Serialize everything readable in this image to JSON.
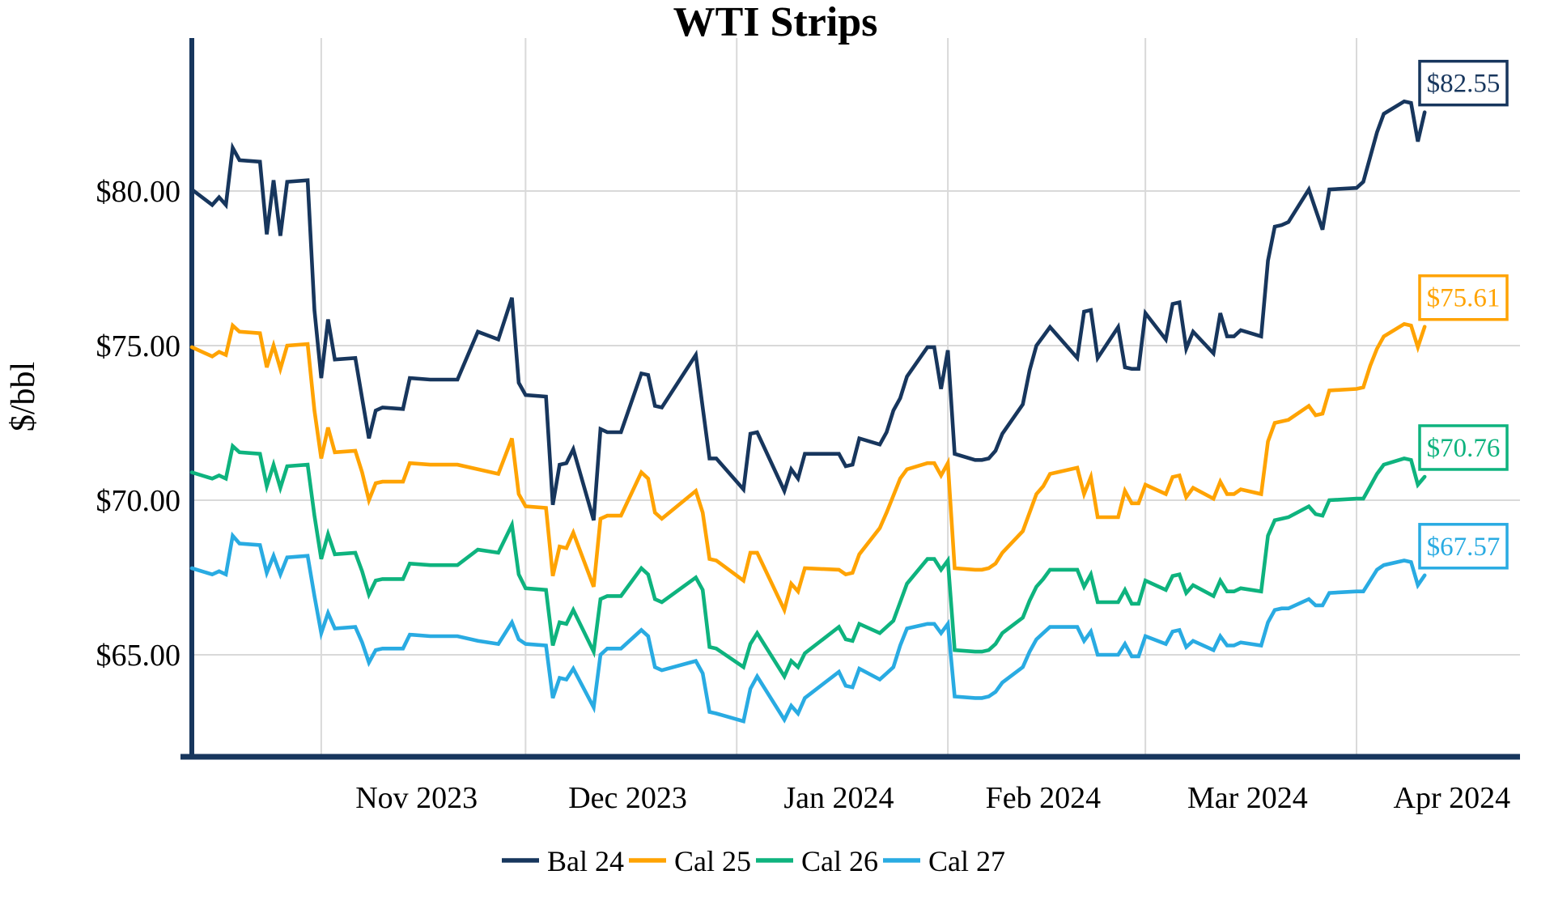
{
  "chart_data": {
    "type": "line",
    "title": "WTI Strips",
    "ylabel": "$/bbl",
    "ylim": [
      61.7,
      84.95
    ],
    "xlim": [
      "2023-10-13",
      "2024-04-25"
    ],
    "grid": true,
    "grid_color": "#D9D9D9",
    "axis_color": "#17365D",
    "legend_position": "bottom-center",
    "y_ticks": [
      {
        "value": 65,
        "label": "$65.00"
      },
      {
        "value": 70,
        "label": "$70.00"
      },
      {
        "value": 75,
        "label": "$75.00"
      },
      {
        "value": 80,
        "label": "$80.00"
      }
    ],
    "month_gridlines": [
      "2023-11-01",
      "2023-12-01",
      "2024-01-01",
      "2024-02-01",
      "2024-03-01",
      "2024-04-01"
    ],
    "x_ticks": [
      {
        "center": "2023-11-15",
        "label": "Nov 2023"
      },
      {
        "center": "2023-12-16",
        "label": "Dec 2023"
      },
      {
        "center": "2024-01-16",
        "label": "Jan 2024"
      },
      {
        "center": "2024-02-15",
        "label": "Feb 2024"
      },
      {
        "center": "2024-03-16",
        "label": "Mar 2024"
      },
      {
        "center": "2024-04-15",
        "label": "Apr 2024"
      }
    ],
    "dates": [
      "2023-10-13",
      "2023-10-16",
      "2023-10-17",
      "2023-10-18",
      "2023-10-19",
      "2023-10-20",
      "2023-10-23",
      "2023-10-24",
      "2023-10-25",
      "2023-10-26",
      "2023-10-27",
      "2023-10-30",
      "2023-10-31",
      "2023-11-01",
      "2023-11-02",
      "2023-11-03",
      "2023-11-06",
      "2023-11-07",
      "2023-11-08",
      "2023-11-09",
      "2023-11-10",
      "2023-11-13",
      "2023-11-14",
      "2023-11-17",
      "2023-11-21",
      "2023-11-24",
      "2023-11-27",
      "2023-11-29",
      "2023-11-30",
      "2023-12-01",
      "2023-12-04",
      "2023-12-05",
      "2023-12-06",
      "2023-12-07",
      "2023-12-08",
      "2023-12-11",
      "2023-12-12",
      "2023-12-13",
      "2023-12-14",
      "2023-12-15",
      "2023-12-18",
      "2023-12-19",
      "2023-12-20",
      "2023-12-21",
      "2023-12-26",
      "2023-12-27",
      "2023-12-28",
      "2023-12-29",
      "2024-01-02",
      "2024-01-03",
      "2024-01-04",
      "2024-01-08",
      "2024-01-09",
      "2024-01-10",
      "2024-01-11",
      "2024-01-16",
      "2024-01-17",
      "2024-01-18",
      "2024-01-19",
      "2024-01-22",
      "2024-01-23",
      "2024-01-24",
      "2024-01-25",
      "2024-01-26",
      "2024-01-29",
      "2024-01-30",
      "2024-01-31",
      "2024-02-01",
      "2024-02-02",
      "2024-02-05",
      "2024-02-06",
      "2024-02-07",
      "2024-02-08",
      "2024-02-09",
      "2024-02-12",
      "2024-02-13",
      "2024-02-14",
      "2024-02-15",
      "2024-02-16",
      "2024-02-20",
      "2024-02-21",
      "2024-02-22",
      "2024-02-23",
      "2024-02-26",
      "2024-02-27",
      "2024-02-28",
      "2024-02-29",
      "2024-03-01",
      "2024-03-04",
      "2024-03-05",
      "2024-03-06",
      "2024-03-07",
      "2024-03-08",
      "2024-03-11",
      "2024-03-12",
      "2024-03-13",
      "2024-03-14",
      "2024-03-15",
      "2024-03-18",
      "2024-03-19",
      "2024-03-20",
      "2024-03-21",
      "2024-03-22",
      "2024-03-25",
      "2024-03-26",
      "2024-03-27",
      "2024-03-28",
      "2024-04-01",
      "2024-04-02",
      "2024-04-03",
      "2024-04-04",
      "2024-04-05",
      "2024-04-08",
      "2024-04-09",
      "2024-04-10",
      "2024-04-11"
    ],
    "series": [
      {
        "name": "Bal 24",
        "color": "#17365D",
        "end_label": "$82.55",
        "end_value": 82.55,
        "values": [
          80.05,
          79.55,
          79.8,
          79.55,
          81.4,
          81.0,
          80.95,
          78.6,
          80.35,
          78.55,
          80.3,
          80.35,
          76.15,
          73.95,
          75.85,
          74.55,
          74.6,
          73.3,
          72.0,
          72.9,
          73.0,
          72.95,
          73.95,
          73.9,
          73.9,
          75.45,
          75.2,
          76.55,
          73.8,
          73.4,
          73.35,
          69.85,
          71.15,
          71.2,
          71.65,
          69.35,
          72.3,
          72.2,
          72.2,
          72.2,
          74.1,
          74.05,
          73.05,
          73.0,
          74.7,
          73.0,
          71.35,
          71.35,
          70.35,
          72.15,
          72.2,
          70.3,
          71.0,
          70.7,
          71.5,
          71.5,
          71.1,
          71.15,
          72.0,
          71.8,
          72.2,
          72.9,
          73.3,
          74.0,
          74.95,
          74.95,
          73.6,
          74.85,
          71.5,
          71.3,
          71.3,
          71.35,
          71.6,
          72.15,
          73.1,
          74.2,
          75.0,
          75.3,
          75.6,
          74.6,
          76.1,
          76.15,
          74.6,
          75.6,
          74.3,
          74.25,
          74.25,
          76.05,
          75.2,
          76.35,
          76.4,
          74.9,
          75.45,
          74.75,
          76.05,
          75.3,
          75.3,
          75.5,
          75.3,
          77.75,
          78.85,
          78.9,
          79.0,
          80.05,
          79.4,
          78.75,
          80.05,
          80.1,
          80.3,
          81.1,
          81.9,
          82.5,
          82.9,
          82.85,
          81.6,
          82.55
        ]
      },
      {
        "name": "Cal 25",
        "color": "#FFA302",
        "end_label": "$75.61",
        "end_value": 75.61,
        "values": [
          74.95,
          74.65,
          74.8,
          74.7,
          75.65,
          75.45,
          75.4,
          74.3,
          75.0,
          74.25,
          75.0,
          75.05,
          72.9,
          71.35,
          72.35,
          71.55,
          71.6,
          70.9,
          70.0,
          70.55,
          70.6,
          70.6,
          71.2,
          71.15,
          71.15,
          71.0,
          70.85,
          72.0,
          70.2,
          69.8,
          69.75,
          67.55,
          68.5,
          68.45,
          68.95,
          67.2,
          69.4,
          69.5,
          69.5,
          69.5,
          70.9,
          70.7,
          69.6,
          69.4,
          70.3,
          69.6,
          68.1,
          68.05,
          67.4,
          68.3,
          68.3,
          66.45,
          67.3,
          67.05,
          67.8,
          67.75,
          67.6,
          67.65,
          68.25,
          69.1,
          69.6,
          70.15,
          70.7,
          71.0,
          71.2,
          71.2,
          70.8,
          71.2,
          67.8,
          67.75,
          67.75,
          67.8,
          67.95,
          68.3,
          69.0,
          69.6,
          70.2,
          70.45,
          70.85,
          71.05,
          70.2,
          70.75,
          69.45,
          69.45,
          70.3,
          69.9,
          69.9,
          70.5,
          70.2,
          70.75,
          70.8,
          70.1,
          70.4,
          70.05,
          70.6,
          70.2,
          70.2,
          70.35,
          70.2,
          71.9,
          72.5,
          72.55,
          72.6,
          73.05,
          72.75,
          72.8,
          73.55,
          73.6,
          73.65,
          74.35,
          74.9,
          75.3,
          75.7,
          75.65,
          74.95,
          75.61
        ]
      },
      {
        "name": "Cal 26",
        "color": "#0EB37E",
        "end_label": "$70.76",
        "end_value": 70.76,
        "values": [
          70.9,
          70.7,
          70.8,
          70.7,
          71.75,
          71.55,
          71.5,
          70.45,
          71.15,
          70.4,
          71.1,
          71.15,
          69.5,
          68.1,
          68.9,
          68.25,
          68.3,
          67.7,
          66.95,
          67.4,
          67.45,
          67.45,
          67.95,
          67.9,
          67.9,
          68.4,
          68.3,
          69.2,
          67.6,
          67.15,
          67.1,
          65.3,
          66.05,
          66.0,
          66.45,
          65.1,
          66.8,
          66.9,
          66.9,
          66.9,
          67.8,
          67.6,
          66.8,
          66.7,
          67.5,
          67.1,
          65.25,
          65.2,
          64.6,
          65.35,
          65.7,
          64.3,
          64.8,
          64.6,
          65.05,
          65.9,
          65.5,
          65.45,
          66.0,
          65.7,
          65.9,
          66.1,
          66.7,
          67.3,
          68.1,
          68.1,
          67.75,
          68.05,
          65.15,
          65.1,
          65.1,
          65.15,
          65.35,
          65.7,
          66.2,
          66.75,
          67.2,
          67.45,
          67.75,
          67.75,
          67.2,
          67.6,
          66.7,
          66.7,
          67.1,
          66.65,
          66.65,
          67.4,
          67.1,
          67.55,
          67.6,
          67.0,
          67.25,
          66.9,
          67.4,
          67.05,
          67.05,
          67.15,
          67.05,
          68.85,
          69.35,
          69.4,
          69.45,
          69.8,
          69.55,
          69.5,
          70.0,
          70.05,
          70.05,
          70.45,
          70.85,
          71.15,
          71.35,
          71.3,
          70.5,
          70.76
        ]
      },
      {
        "name": "Cal 27",
        "color": "#29ABE2",
        "end_label": "$67.57",
        "end_value": 67.57,
        "values": [
          67.8,
          67.6,
          67.7,
          67.6,
          68.85,
          68.6,
          68.55,
          67.65,
          68.2,
          67.6,
          68.15,
          68.2,
          66.9,
          65.7,
          66.35,
          65.85,
          65.9,
          65.4,
          64.75,
          65.15,
          65.2,
          65.2,
          65.65,
          65.6,
          65.6,
          65.45,
          65.35,
          66.05,
          65.5,
          65.35,
          65.3,
          63.6,
          64.25,
          64.2,
          64.55,
          63.3,
          65.0,
          65.2,
          65.2,
          65.2,
          65.8,
          65.6,
          64.6,
          64.5,
          64.8,
          64.4,
          63.15,
          63.1,
          62.85,
          63.9,
          64.3,
          62.9,
          63.35,
          63.1,
          63.6,
          64.45,
          64.0,
          63.95,
          64.55,
          64.2,
          64.4,
          64.6,
          65.3,
          65.85,
          66.0,
          66.0,
          65.7,
          66.0,
          63.65,
          63.6,
          63.6,
          63.65,
          63.8,
          64.1,
          64.6,
          65.1,
          65.5,
          65.7,
          65.9,
          65.9,
          65.45,
          65.75,
          65.0,
          65.0,
          65.35,
          64.95,
          64.95,
          65.6,
          65.35,
          65.75,
          65.8,
          65.25,
          65.45,
          65.15,
          65.6,
          65.3,
          65.3,
          65.4,
          65.3,
          66.05,
          66.45,
          66.5,
          66.5,
          66.8,
          66.6,
          66.6,
          67.0,
          67.05,
          67.05,
          67.4,
          67.75,
          67.9,
          68.05,
          68.0,
          67.25,
          67.57
        ]
      }
    ]
  }
}
